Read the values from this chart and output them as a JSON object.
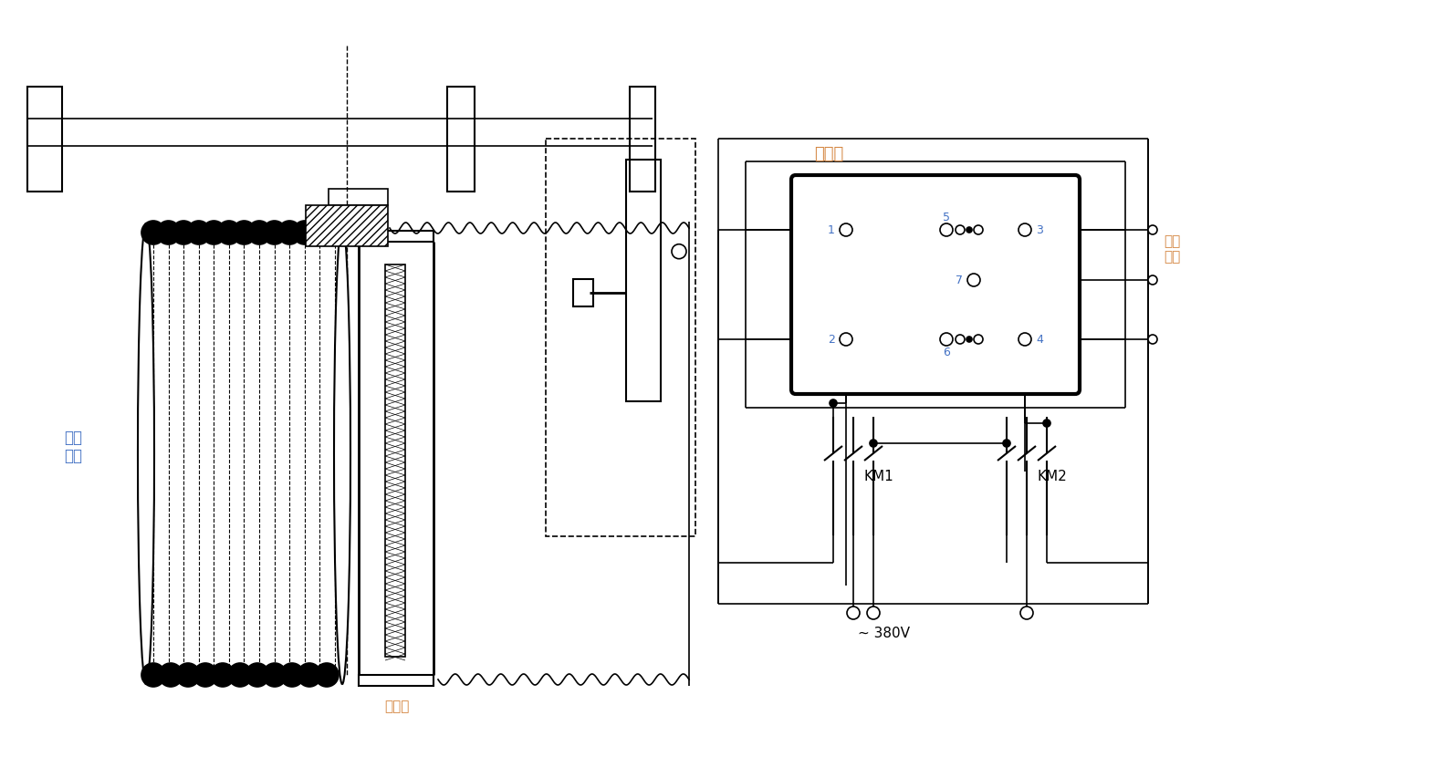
{
  "background_color": "#ffffff",
  "label_drum": "钢绳\n卷筒",
  "label_rope_arranger": "排绳器",
  "label_breaker": "断火器",
  "label_motor": "卷扬\n电机",
  "label_km1": "KM1",
  "label_km2": "KM2",
  "label_voltage": "~ 380V",
  "node_labels": [
    "1",
    "2",
    "3",
    "4",
    "5",
    "6",
    "7"
  ],
  "text_color_breaker": "#d4843e",
  "text_color_motor": "#d4843e",
  "text_color_drum": "#4472c4",
  "text_color_arranger": "#d4843e",
  "text_color_km": "#000000"
}
